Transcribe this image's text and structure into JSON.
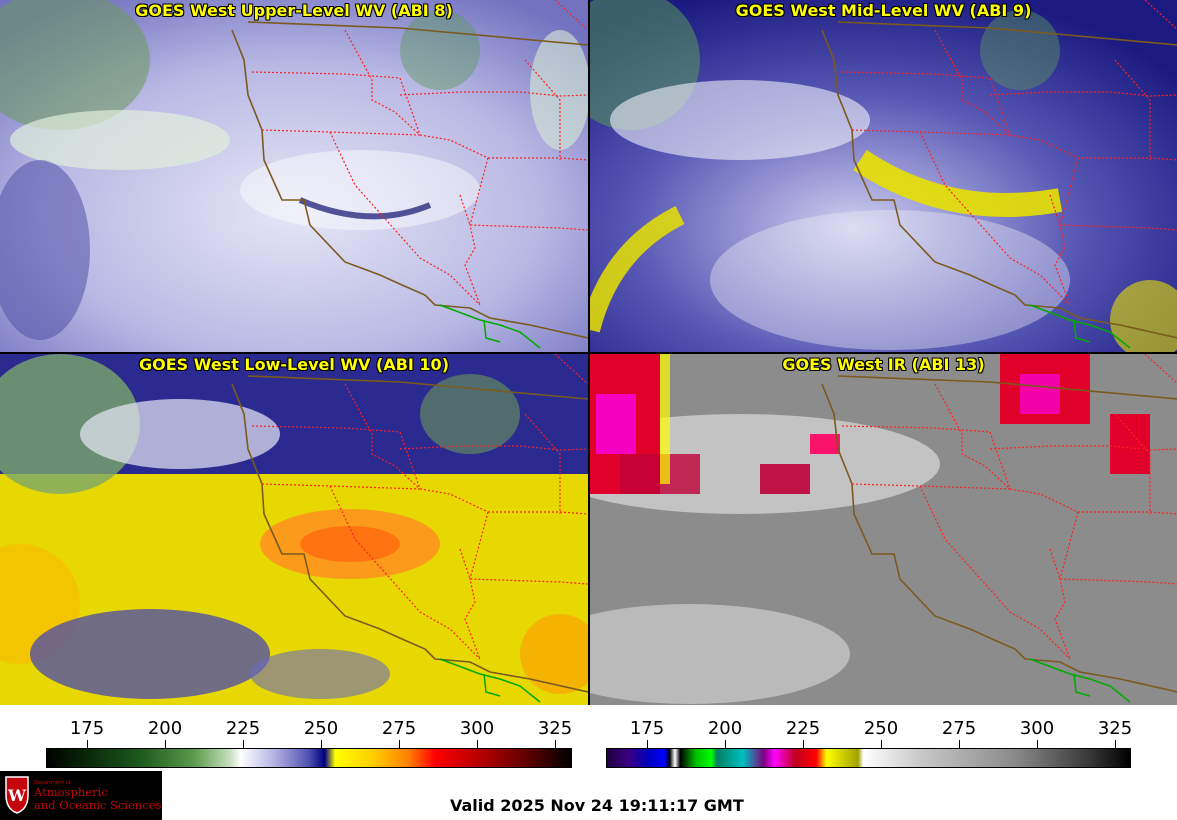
{
  "panels": [
    {
      "title": "GOES West Upper-Level WV (ABI 8)"
    },
    {
      "title": "GOES West Mid-Level WV (ABI 9)"
    },
    {
      "title": "GOES West Low-Level WV (ABI 10)"
    },
    {
      "title": "GOES West IR (ABI 13)"
    }
  ],
  "colorbars": [
    {
      "name": "water-vapor",
      "ticks": [
        "175",
        "200",
        "225",
        "250",
        "275",
        "300",
        "325"
      ]
    },
    {
      "name": "infrared",
      "ticks": [
        "175",
        "200",
        "225",
        "250",
        "275",
        "300",
        "325"
      ]
    }
  ],
  "logo": {
    "line1": "Department of",
    "line2": "Atmospheric",
    "line3": "and Oceanic Sciences"
  },
  "footer": {
    "valid_time": "Valid 2025 Nov 24 19:11:17 GMT"
  },
  "colors": {
    "title_text": "#ffff00",
    "coastline": "#7a5a1e",
    "state_borders": "#ff2020",
    "mexico_border": "#00aa00",
    "logo_red": "#c5050c"
  }
}
